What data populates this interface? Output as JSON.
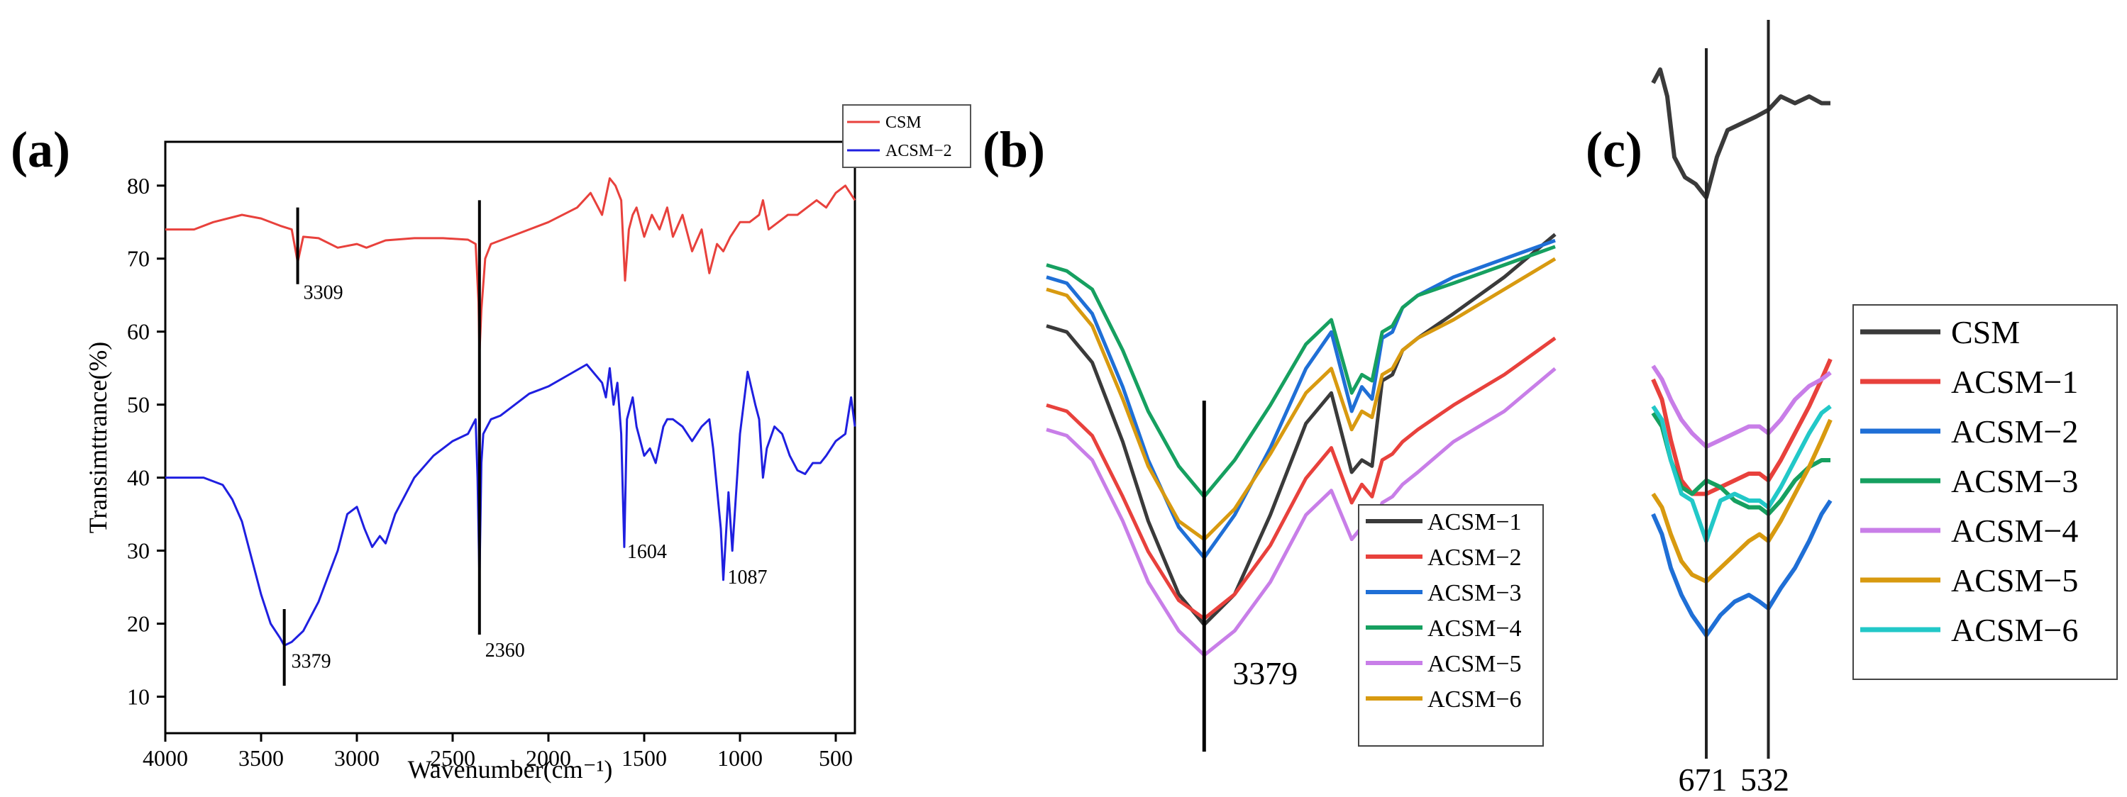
{
  "chart_data": [
    {
      "panel": "(a)",
      "type": "line",
      "title": "",
      "xlabel": "Wavenumber(cm⁻¹)",
      "ylabel": "Transimttrance(%)",
      "xlim": [
        4000,
        400
      ],
      "ylim": [
        5,
        86
      ],
      "xticks": [
        4000,
        3500,
        3000,
        2500,
        2000,
        1500,
        1000,
        500
      ],
      "yticks": [
        10,
        20,
        30,
        40,
        50,
        60,
        70,
        80
      ],
      "legend_position": "top-right",
      "series": [
        {
          "name": "CSM",
          "color": "#e8413c",
          "x": [
            4000,
            3850,
            3750,
            3600,
            3500,
            3400,
            3340,
            3309,
            3280,
            3200,
            3100,
            3000,
            2950,
            2900,
            2850,
            2700,
            2550,
            2420,
            2380,
            2365,
            2360,
            2350,
            2330,
            2300,
            2200,
            2000,
            1850,
            1780,
            1720,
            1680,
            1650,
            1620,
            1600,
            1580,
            1560,
            1540,
            1500,
            1460,
            1420,
            1380,
            1350,
            1300,
            1250,
            1200,
            1160,
            1120,
            1087,
            1050,
            1000,
            950,
            900,
            880,
            850,
            800,
            750,
            700,
            650,
            600,
            550,
            500,
            450,
            400
          ],
          "y": [
            74,
            74,
            75,
            76,
            75.5,
            74.5,
            74,
            69.5,
            73,
            72.8,
            71.5,
            72,
            71.5,
            72,
            72.5,
            72.8,
            72.8,
            72.6,
            72,
            64,
            57,
            63,
            70,
            72,
            73,
            75,
            77,
            79,
            76,
            81,
            80,
            78,
            67,
            74,
            76,
            77,
            73,
            76,
            74,
            77,
            73,
            76,
            71,
            74,
            68,
            72,
            71,
            73,
            75,
            75,
            76,
            78,
            74,
            75,
            76,
            76,
            77,
            78,
            77,
            79,
            80,
            78
          ]
        },
        {
          "name": "ACSM−2",
          "color": "#1f1fe0",
          "x": [
            4000,
            3800,
            3700,
            3650,
            3600,
            3550,
            3500,
            3450,
            3400,
            3379,
            3340,
            3280,
            3200,
            3100,
            3050,
            3000,
            2960,
            2920,
            2880,
            2850,
            2800,
            2700,
            2600,
            2500,
            2420,
            2400,
            2380,
            2370,
            2360,
            2350,
            2340,
            2320,
            2300,
            2250,
            2200,
            2100,
            2000,
            1900,
            1800,
            1720,
            1700,
            1680,
            1660,
            1640,
            1620,
            1604,
            1590,
            1560,
            1540,
            1500,
            1470,
            1440,
            1400,
            1380,
            1350,
            1300,
            1250,
            1200,
            1160,
            1140,
            1100,
            1087,
            1060,
            1040,
            1000,
            960,
            920,
            900,
            880,
            860,
            820,
            780,
            740,
            700,
            660,
            620,
            580,
            550,
            500,
            450,
            420,
            400
          ],
          "y": [
            40,
            40,
            39,
            37,
            34,
            29,
            24,
            20,
            18,
            17,
            17.5,
            19,
            23,
            30,
            35,
            36,
            33,
            30.5,
            32,
            31,
            35,
            40,
            43,
            45,
            46,
            47,
            48,
            40,
            26,
            42,
            46,
            47,
            48,
            48.5,
            49.5,
            51.5,
            52.5,
            54,
            55.5,
            53,
            51,
            55,
            50,
            53,
            46,
            30.5,
            48,
            51,
            47,
            43,
            44,
            42,
            47,
            48,
            48,
            47,
            45,
            47,
            48,
            44,
            33,
            26,
            38,
            30,
            46,
            54.5,
            50,
            48,
            40,
            44,
            47,
            46,
            43,
            41,
            40.5,
            42,
            42,
            43,
            45,
            46,
            51,
            47
          ]
        }
      ],
      "annotations": [
        {
          "label": "3309",
          "x": 3309
        },
        {
          "label": "2360",
          "x": 2360
        },
        {
          "label": "3379",
          "x": 3379
        },
        {
          "label": "1604",
          "x": 1604
        },
        {
          "label": "1087",
          "x": 1087
        }
      ]
    },
    {
      "panel": "(b)",
      "type": "line",
      "title": "",
      "legend_position": "bottom-right",
      "axes_visible": false,
      "relative_x_range": [
        0,
        1
      ],
      "relative_y_range": [
        0,
        1
      ],
      "marker": {
        "label": "3379",
        "x": 0.31
      },
      "series": [
        {
          "name": "ACSM−1",
          "color": "#3a3a3a",
          "x": [
            0,
            0.04,
            0.09,
            0.15,
            0.2,
            0.26,
            0.31,
            0.37,
            0.44,
            0.51,
            0.56,
            0.6,
            0.62,
            0.64,
            0.66,
            0.68,
            0.7,
            0.73,
            0.8,
            0.9,
            1.0
          ],
          "y": [
            0.64,
            0.63,
            0.58,
            0.45,
            0.32,
            0.2,
            0.15,
            0.2,
            0.33,
            0.48,
            0.53,
            0.4,
            0.42,
            0.41,
            0.55,
            0.56,
            0.6,
            0.62,
            0.66,
            0.72,
            0.79
          ]
        },
        {
          "name": "ACSM−2",
          "color": "#e8413c",
          "x": [
            0,
            0.04,
            0.09,
            0.15,
            0.2,
            0.26,
            0.31,
            0.37,
            0.44,
            0.51,
            0.56,
            0.6,
            0.62,
            0.64,
            0.66,
            0.68,
            0.7,
            0.73,
            0.8,
            0.9,
            1.0
          ],
          "y": [
            0.51,
            0.5,
            0.46,
            0.36,
            0.27,
            0.19,
            0.16,
            0.2,
            0.28,
            0.39,
            0.44,
            0.35,
            0.38,
            0.36,
            0.42,
            0.43,
            0.45,
            0.47,
            0.51,
            0.56,
            0.62
          ]
        },
        {
          "name": "ACSM−3",
          "color": "#1f6fd6",
          "x": [
            0,
            0.04,
            0.09,
            0.15,
            0.2,
            0.26,
            0.31,
            0.37,
            0.44,
            0.51,
            0.56,
            0.6,
            0.62,
            0.64,
            0.66,
            0.68,
            0.7,
            0.73,
            0.8,
            0.9,
            1.0
          ],
          "y": [
            0.72,
            0.71,
            0.66,
            0.54,
            0.42,
            0.31,
            0.26,
            0.33,
            0.44,
            0.57,
            0.63,
            0.5,
            0.54,
            0.52,
            0.62,
            0.63,
            0.67,
            0.69,
            0.72,
            0.75,
            0.78
          ]
        },
        {
          "name": "ACSM−4",
          "color": "#16a060",
          "x": [
            0,
            0.04,
            0.09,
            0.15,
            0.2,
            0.26,
            0.31,
            0.37,
            0.44,
            0.51,
            0.56,
            0.6,
            0.62,
            0.64,
            0.66,
            0.68,
            0.7,
            0.73,
            0.8,
            0.9,
            1.0
          ],
          "y": [
            0.74,
            0.73,
            0.7,
            0.6,
            0.5,
            0.41,
            0.36,
            0.42,
            0.51,
            0.61,
            0.65,
            0.53,
            0.56,
            0.55,
            0.63,
            0.64,
            0.67,
            0.69,
            0.71,
            0.74,
            0.77
          ]
        },
        {
          "name": "ACSM−5",
          "color": "#c87ee8",
          "x": [
            0,
            0.04,
            0.09,
            0.15,
            0.2,
            0.26,
            0.31,
            0.37,
            0.44,
            0.51,
            0.56,
            0.6,
            0.62,
            0.64,
            0.66,
            0.68,
            0.7,
            0.73,
            0.8,
            0.9,
            1.0
          ],
          "y": [
            0.47,
            0.46,
            0.42,
            0.32,
            0.22,
            0.14,
            0.1,
            0.14,
            0.22,
            0.33,
            0.37,
            0.29,
            0.31,
            0.3,
            0.35,
            0.36,
            0.38,
            0.4,
            0.45,
            0.5,
            0.57
          ]
        },
        {
          "name": "ACSM−6",
          "color": "#d89a10",
          "x": [
            0,
            0.04,
            0.09,
            0.15,
            0.2,
            0.26,
            0.31,
            0.37,
            0.44,
            0.51,
            0.56,
            0.6,
            0.62,
            0.64,
            0.66,
            0.68,
            0.7,
            0.73,
            0.8,
            0.9,
            1.0
          ],
          "y": [
            0.7,
            0.69,
            0.64,
            0.52,
            0.41,
            0.32,
            0.29,
            0.34,
            0.43,
            0.53,
            0.57,
            0.47,
            0.5,
            0.49,
            0.56,
            0.57,
            0.6,
            0.62,
            0.65,
            0.7,
            0.75
          ]
        }
      ]
    },
    {
      "panel": "(c)",
      "type": "line",
      "title": "",
      "legend_position": "right",
      "axes_visible": false,
      "relative_x_range": [
        0,
        1
      ],
      "relative_y_range": [
        0,
        1
      ],
      "markers": [
        {
          "label": "671",
          "x": 0.3
        },
        {
          "label": "532",
          "x": 0.65
        }
      ],
      "series": [
        {
          "name": "CSM",
          "color": "#3a3a3a",
          "x": [
            0,
            0.04,
            0.08,
            0.12,
            0.18,
            0.24,
            0.3,
            0.36,
            0.42,
            0.5,
            0.58,
            0.65,
            0.72,
            0.8,
            0.88,
            0.95,
            1.0
          ],
          "y": [
            0.94,
            0.96,
            0.92,
            0.83,
            0.8,
            0.79,
            0.77,
            0.83,
            0.87,
            0.88,
            0.89,
            0.9,
            0.92,
            0.91,
            0.92,
            0.91,
            0.91
          ]
        },
        {
          "name": "ACSM−1",
          "color": "#e8413c",
          "x": [
            0,
            0.05,
            0.1,
            0.16,
            0.22,
            0.3,
            0.38,
            0.46,
            0.54,
            0.6,
            0.65,
            0.72,
            0.8,
            0.88,
            0.95,
            1.0
          ],
          "y": [
            0.5,
            0.47,
            0.41,
            0.35,
            0.33,
            0.33,
            0.34,
            0.35,
            0.36,
            0.36,
            0.35,
            0.38,
            0.42,
            0.46,
            0.5,
            0.53
          ]
        },
        {
          "name": "ACSM−2",
          "color": "#1f6fd6",
          "x": [
            0,
            0.05,
            0.1,
            0.16,
            0.22,
            0.3,
            0.38,
            0.46,
            0.54,
            0.6,
            0.65,
            0.72,
            0.8,
            0.88,
            0.95,
            1.0
          ],
          "y": [
            0.3,
            0.27,
            0.22,
            0.18,
            0.15,
            0.12,
            0.15,
            0.17,
            0.18,
            0.17,
            0.16,
            0.19,
            0.22,
            0.26,
            0.3,
            0.32
          ]
        },
        {
          "name": "ACSM−3",
          "color": "#16a060",
          "x": [
            0,
            0.05,
            0.1,
            0.16,
            0.22,
            0.3,
            0.38,
            0.46,
            0.54,
            0.6,
            0.65,
            0.72,
            0.8,
            0.88,
            0.95,
            1.0
          ],
          "y": [
            0.45,
            0.43,
            0.38,
            0.34,
            0.33,
            0.35,
            0.34,
            0.32,
            0.31,
            0.31,
            0.3,
            0.32,
            0.35,
            0.37,
            0.38,
            0.38
          ]
        },
        {
          "name": "ACSM−4",
          "color": "#c87ee8",
          "x": [
            0,
            0.05,
            0.1,
            0.16,
            0.22,
            0.3,
            0.38,
            0.46,
            0.54,
            0.6,
            0.65,
            0.72,
            0.8,
            0.88,
            0.95,
            1.0
          ],
          "y": [
            0.52,
            0.5,
            0.47,
            0.44,
            0.42,
            0.4,
            0.41,
            0.42,
            0.43,
            0.43,
            0.42,
            0.44,
            0.47,
            0.49,
            0.5,
            0.51
          ]
        },
        {
          "name": "ACSM−5",
          "color": "#d89a10",
          "x": [
            0,
            0.05,
            0.1,
            0.16,
            0.22,
            0.3,
            0.38,
            0.46,
            0.54,
            0.6,
            0.65,
            0.72,
            0.8,
            0.88,
            0.95,
            1.0
          ],
          "y": [
            0.33,
            0.31,
            0.27,
            0.23,
            0.21,
            0.2,
            0.22,
            0.24,
            0.26,
            0.27,
            0.26,
            0.29,
            0.33,
            0.37,
            0.41,
            0.44
          ]
        },
        {
          "name": "ACSM−6",
          "color": "#22c8c8",
          "x": [
            0,
            0.05,
            0.1,
            0.16,
            0.22,
            0.3,
            0.38,
            0.46,
            0.54,
            0.6,
            0.65,
            0.72,
            0.8,
            0.88,
            0.95,
            1.0
          ],
          "y": [
            0.46,
            0.44,
            0.38,
            0.33,
            0.32,
            0.26,
            0.32,
            0.33,
            0.32,
            0.32,
            0.31,
            0.34,
            0.38,
            0.42,
            0.45,
            0.46
          ]
        }
      ]
    }
  ]
}
